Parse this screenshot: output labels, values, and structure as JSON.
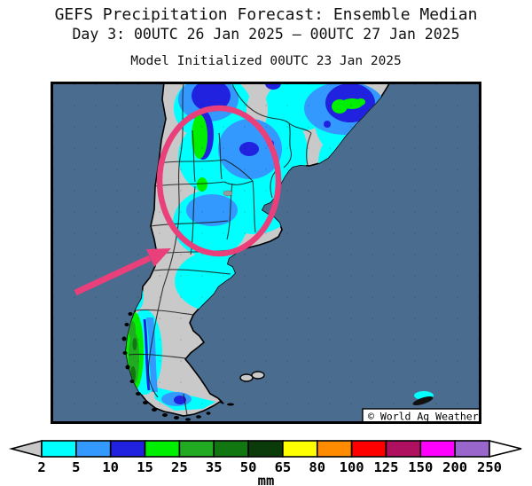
{
  "header": {
    "title": "GEFS Precipitation Forecast: Ensemble Median",
    "period": "Day 3: 00UTC 26 Jan 2025 — 00UTC 27 Jan 2025",
    "initialization": "Model Initialized 00UTC 23 Jan 2025"
  },
  "map": {
    "watermark": "© World Ag Weather",
    "colors": {
      "ocean": "#4A6C8E",
      "land": "#C9C9C9",
      "coastline": "#000000",
      "annotation_pink": "#E9407C"
    }
  },
  "colorbar": {
    "unit": "mm",
    "tick_labels": [
      "2",
      "5",
      "10",
      "15",
      "25",
      "35",
      "50",
      "65",
      "80",
      "100",
      "125",
      "150",
      "200",
      "250"
    ],
    "box_colors": [
      "#00FFFF",
      "#3399FF",
      "#2121E0",
      "#00EE00",
      "#22AA22",
      "#117711",
      "#0B3B0B",
      "#FFFF00",
      "#FF8C00",
      "#FF0000",
      "#B01060",
      "#FF00FF",
      "#9966CC"
    ],
    "underflow_color": "#C8C8C8",
    "overflow_color": "#FFFFFF"
  }
}
